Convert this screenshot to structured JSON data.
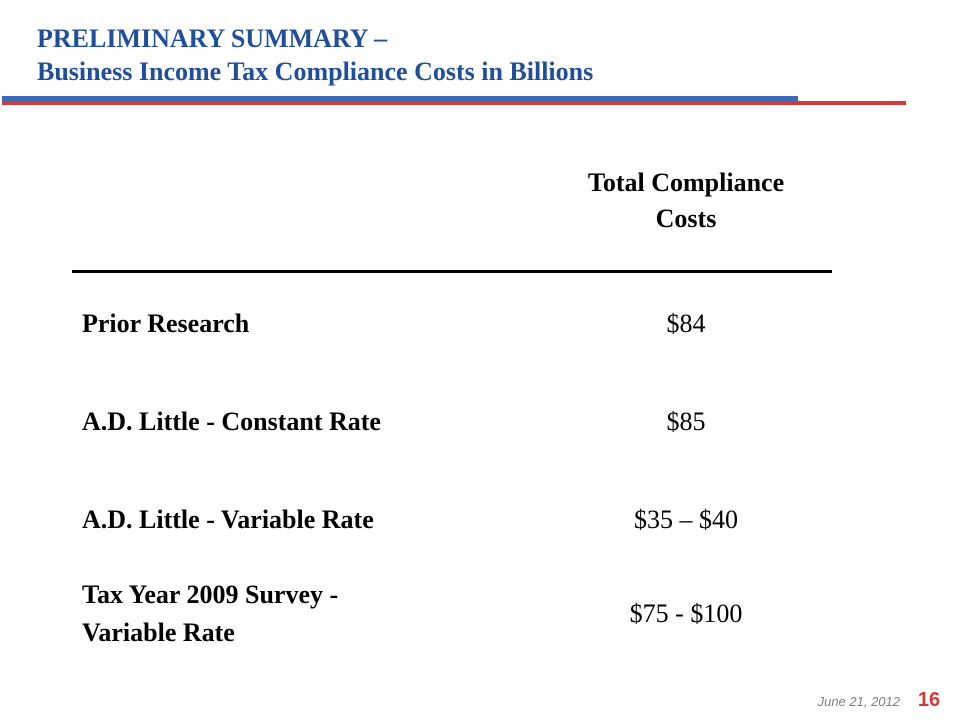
{
  "header": {
    "title_line1": "PRELIMINARY SUMMARY –",
    "title_line2": "Business Income Tax Compliance Costs in Billions"
  },
  "table": {
    "column_header_line1": "Total Compliance",
    "column_header_line2": "Costs",
    "rows": [
      {
        "label": "Prior Research",
        "value": "$84"
      },
      {
        "label": "A.D. Little - Constant Rate",
        "value": "$85"
      },
      {
        "label": "A.D. Little - Variable Rate",
        "value": "$35 – $40"
      },
      {
        "label_line1": "Tax Year 2009 Survey -",
        "label_line2": "Variable Rate",
        "value": "$75 - $100"
      }
    ]
  },
  "footer": {
    "date": "June 21, 2012",
    "page_number": "16"
  },
  "colors": {
    "title": "#1f4e9c",
    "rule_blue": "#3a6ab8",
    "rule_red": "#d33a3a",
    "page_number": "#d33a3a",
    "footer_text": "#7f7f7f"
  }
}
